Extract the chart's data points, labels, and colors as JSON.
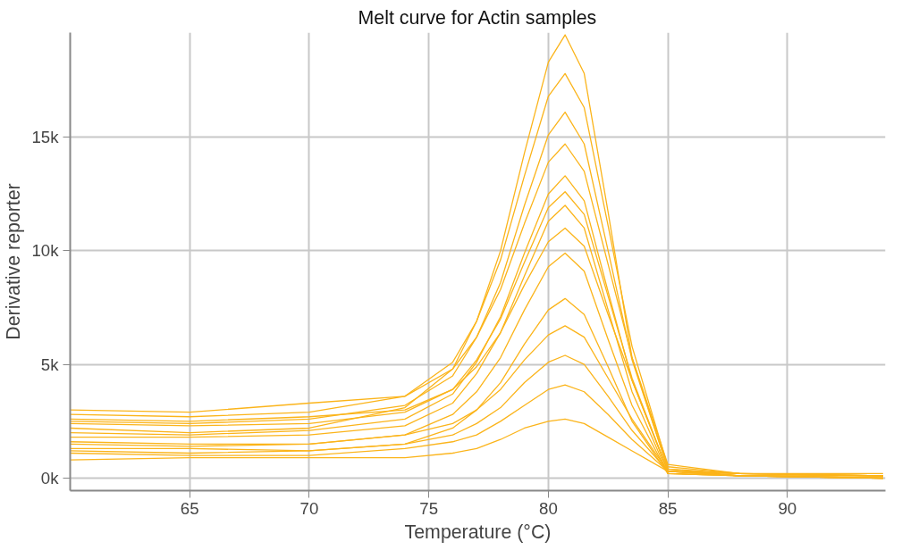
{
  "chart_data": {
    "type": "line",
    "title": "Melt curve for Actin samples",
    "xlabel": "Temperature (°C)",
    "ylabel": "Derivative reporter",
    "x": [
      60,
      65,
      70,
      74,
      76,
      77,
      78,
      79,
      80,
      80.7,
      81.5,
      82.5,
      83.5,
      85,
      88,
      94
    ],
    "xlim": [
      60,
      94.1
    ],
    "xticks": [
      65,
      70,
      75,
      80,
      85,
      90
    ],
    "ylim": [
      -550,
      19600
    ],
    "yticks": [
      {
        "value": 0,
        "label": "0k"
      },
      {
        "value": 5000,
        "label": "5k"
      },
      {
        "value": 10000,
        "label": "10k"
      },
      {
        "value": 15000,
        "label": "15k"
      }
    ],
    "grid": true,
    "marker": "none",
    "line_style": "solid",
    "series": [
      {
        "color": "#fbb41a",
        "values": [
          2200,
          2000,
          2200,
          3100,
          4800,
          6900,
          10000,
          14300,
          18300,
          19500,
          17800,
          11700,
          5300,
          600,
          200,
          100
        ]
      },
      {
        "color": "#fbb41a",
        "values": [
          2800,
          2700,
          2900,
          3600,
          5100,
          6900,
          9600,
          13300,
          16800,
          17800,
          16300,
          11100,
          5800,
          500,
          200,
          100
        ]
      },
      {
        "color": "#fbb41a",
        "values": [
          2500,
          2400,
          2600,
          3200,
          4500,
          6200,
          8600,
          12000,
          15100,
          16100,
          14700,
          10000,
          5200,
          400,
          100,
          0
        ]
      },
      {
        "color": "#fbb41a",
        "values": [
          3000,
          2900,
          3300,
          3600,
          4800,
          6200,
          8300,
          11200,
          13900,
          14700,
          13500,
          9400,
          5300,
          400,
          200,
          100
        ]
      },
      {
        "color": "#fbb41a",
        "values": [
          2000,
          1900,
          2100,
          2600,
          3700,
          5100,
          7100,
          9900,
          12500,
          13300,
          12200,
          8200,
          4300,
          300,
          100,
          0
        ]
      },
      {
        "color": "#fbb41a",
        "values": [
          2400,
          2300,
          2400,
          2900,
          3900,
          5200,
          7000,
          9500,
          11900,
          12600,
          11600,
          8000,
          4400,
          300,
          200,
          100
        ]
      },
      {
        "color": "#fbb41a",
        "values": [
          1800,
          1800,
          1900,
          2300,
          3300,
          4600,
          6400,
          8900,
          11300,
          12000,
          11000,
          7400,
          3800,
          200,
          100,
          0
        ]
      },
      {
        "color": "#fbb41a",
        "values": [
          2600,
          2500,
          2700,
          3000,
          3900,
          4900,
          6400,
          8500,
          10400,
          11000,
          10200,
          7200,
          4300,
          300,
          200,
          200
        ]
      },
      {
        "color": "#fbb41a",
        "values": [
          1500,
          1400,
          1500,
          1900,
          2800,
          3800,
          5300,
          7400,
          9300,
          9900,
          9100,
          6100,
          3200,
          200,
          100,
          0
        ]
      },
      {
        "color": "#fbb41a",
        "values": [
          1200,
          1100,
          1200,
          1500,
          2200,
          3000,
          4200,
          5900,
          7400,
          7900,
          7200,
          4900,
          2500,
          200,
          100,
          100
        ]
      },
      {
        "color": "#fbb41a",
        "values": [
          1600,
          1500,
          1500,
          1900,
          2400,
          3000,
          3900,
          5200,
          6300,
          6700,
          6200,
          4400,
          2600,
          300,
          100,
          0
        ]
      },
      {
        "color": "#fbb41a",
        "values": [
          1300,
          1300,
          1200,
          1500,
          1900,
          2400,
          3100,
          4200,
          5100,
          5400,
          5000,
          3600,
          2100,
          300,
          200,
          100
        ]
      },
      {
        "color": "#fbb41a",
        "values": [
          1100,
          1000,
          1000,
          1300,
          1600,
          1900,
          2500,
          3200,
          3900,
          4100,
          3800,
          2800,
          1700,
          300,
          100,
          0
        ]
      },
      {
        "color": "#fbb41a",
        "values": [
          800,
          900,
          900,
          900,
          1100,
          1300,
          1700,
          2200,
          2500,
          2600,
          2400,
          1800,
          1200,
          300,
          100,
          100
        ]
      }
    ]
  }
}
